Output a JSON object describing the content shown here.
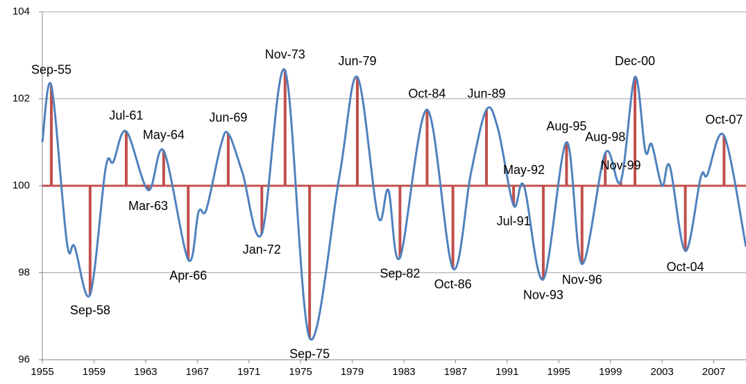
{
  "chart_data": {
    "type": "line",
    "x": [
      1955,
      1955.7,
      1956.9,
      1957.5,
      1958.7,
      1959.9,
      1960.5,
      1961.5,
      1963.2,
      1964.4,
      1966.3,
      1967.1,
      1967.7,
      1968.8,
      1969.4,
      1970.5,
      1972.0,
      1973.8,
      1975.7,
      1978.0,
      1979.4,
      1981.0,
      1981.8,
      1982.7,
      1984.8,
      1986.8,
      1988.2,
      1989.4,
      1990.3,
      1991.5,
      1992.3,
      1993.8,
      1995.6,
      1996.8,
      1998.6,
      1999.8,
      2000.9,
      2001.7,
      2002.2,
      2003.0,
      2003.6,
      2004.8,
      2006.0,
      2006.5,
      2007.8,
      2009.5
    ],
    "series": [
      {
        "color": "#4f81bd",
        "values": [
          101.0,
          102.3,
          98.7,
          98.6,
          97.5,
          100.4,
          100.55,
          101.25,
          99.9,
          100.8,
          98.3,
          99.4,
          99.45,
          100.9,
          101.2,
          100.3,
          98.9,
          102.65,
          96.5,
          100.2,
          102.5,
          99.3,
          99.9,
          98.35,
          101.75,
          98.1,
          100.3,
          101.75,
          101.3,
          99.55,
          100.0,
          97.85,
          101.0,
          98.2,
          100.75,
          100.1,
          102.5,
          100.8,
          100.95,
          100.0,
          100.45,
          98.5,
          100.2,
          100.25,
          101.15,
          98.6
        ]
      }
    ],
    "turning_points": {
      "color": "#c0504d",
      "baseline": 100,
      "labels": [
        "Sep-55",
        "Sep-58",
        "Jul-61",
        "Mar-63",
        "May-64",
        "Apr-66",
        "Jun-69",
        "Jan-72",
        "Nov-73",
        "Sep-75",
        "Jun-79",
        "Sep-82",
        "Oct-84",
        "Oct-86",
        "Jun-89",
        "Jul-91",
        "May-92",
        "Nov-93",
        "Aug-95",
        "Nov-96",
        "Aug-98",
        "Nov-99",
        "Dec-00",
        "Oct-04",
        "Oct-07"
      ],
      "x": [
        1955.7,
        1958.7,
        1961.5,
        1963.2,
        1964.4,
        1966.3,
        1969.4,
        1972.0,
        1973.8,
        1975.7,
        1979.4,
        1982.7,
        1984.8,
        1986.8,
        1989.4,
        1991.5,
        1992.3,
        1993.8,
        1995.6,
        1996.8,
        1998.6,
        1999.8,
        2000.9,
        2004.8,
        2007.8
      ],
      "values": [
        102.3,
        97.5,
        101.25,
        99.9,
        100.8,
        98.3,
        101.2,
        98.9,
        102.65,
        96.5,
        102.5,
        98.35,
        101.75,
        98.1,
        101.75,
        99.55,
        100.0,
        97.85,
        101.0,
        98.2,
        100.75,
        100.1,
        102.5,
        98.5,
        101.15
      ]
    },
    "xlim": [
      1955,
      2009.5
    ],
    "ylim": [
      96,
      104
    ],
    "xticks": [
      1955,
      1959,
      1963,
      1967,
      1971,
      1975,
      1979,
      1983,
      1987,
      1991,
      1995,
      1999,
      2003,
      2007
    ],
    "yticks": [
      96,
      98,
      100,
      102,
      104
    ],
    "grid": true
  }
}
